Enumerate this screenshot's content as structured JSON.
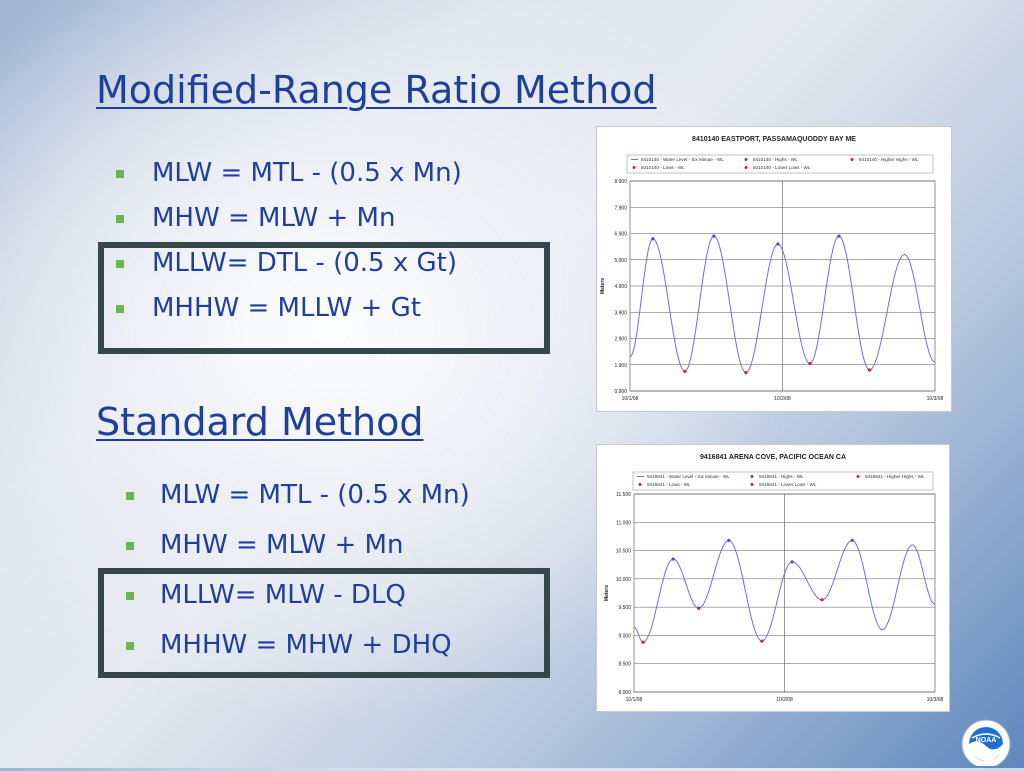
{
  "slide": {
    "title1": "Modified-Range Ratio Method",
    "title2": "Standard Method",
    "list1": [
      "MLW = MTL - (0.5 x Mn)",
      "MHW = MLW + Mn",
      "MLLW= DTL - (0.5 x Gt)",
      "MHHW = MLLW + Gt"
    ],
    "list2": [
      "MLW = MTL - (0.5 x Mn)",
      "MHW = MLW + Mn",
      "MLLW= MLW - DLQ",
      "MHHW = MHW + DHQ"
    ],
    "bullet_color": "#6bb74f",
    "text_color": "#1f3f9a",
    "box_color": "#34484c"
  },
  "logo": {
    "text": "NOAA",
    "icon": "noaa-seal-icon"
  },
  "chart_data": [
    {
      "type": "line",
      "title": "8410140  EASTPORT, PASSAMAQUODDY BAY ME",
      "ylabel": "Meters",
      "ylim": [
        0.9,
        8.9
      ],
      "yticks": [
        "8.900",
        "7.900",
        "6.900",
        "5.900",
        "4.900",
        "3.900",
        "2.900",
        "1.900",
        "0.900"
      ],
      "xticks": [
        "10/1/08",
        "10/2/08",
        "10/3/08"
      ],
      "legend": [
        "8410140 - Water Level - Six Minute - WL",
        "8410140 - Highs - WL",
        "8410140 - Higher Highs - WL",
        "8410140 - Lows - WL",
        "8410140 - Lower Lows - WL"
      ],
      "series": [
        {
          "name": "8410140 - Water Level - Six Minute - WL",
          "x": [
            0.0,
            0.15,
            0.36,
            0.55,
            0.76,
            0.97,
            1.18,
            1.37,
            1.57,
            1.8,
            2.0
          ],
          "y": [
            2.2,
            6.7,
            1.65,
            6.8,
            1.6,
            6.5,
            1.95,
            6.8,
            1.7,
            6.1,
            2.0
          ]
        },
        {
          "name": "8410140 - Highs - WL",
          "x": [
            0.15,
            0.55,
            0.97,
            1.37
          ],
          "y": [
            6.7,
            6.8,
            6.5,
            6.8
          ]
        },
        {
          "name": "8410140 - Lows - WL",
          "x": [
            0.36,
            0.76,
            1.18,
            1.57
          ],
          "y": [
            1.65,
            1.6,
            1.95,
            1.7
          ]
        }
      ],
      "colors": {
        "line": "#6f6fd9",
        "marker": "#cc2244"
      }
    },
    {
      "type": "line",
      "title": "9416841  ARENA COVE, PACIFIC OCEAN CA",
      "ylabel": "Meters",
      "ylim": [
        8.0,
        11.5
      ],
      "yticks": [
        "11.500",
        "11.000",
        "10.500",
        "10.000",
        "9.500",
        "9.000",
        "8.500",
        "8.000"
      ],
      "xticks": [
        "10/1/08",
        "10/2/08",
        "10/3/08"
      ],
      "legend": [
        "9416841 - Water Level - Six Minute - WL",
        "9416841 - Highs - WL",
        "9416841 - Higher Highs - WL",
        "9416841 - Lows - WL",
        "9416841 - Lower Lows - WL"
      ],
      "series": [
        {
          "name": "9416841 - Water Level - Six Minute - WL",
          "x": [
            0.0,
            0.06,
            0.26,
            0.43,
            0.63,
            0.85,
            1.05,
            1.25,
            1.45,
            1.65,
            1.85,
            2.0
          ],
          "y": [
            9.15,
            8.88,
            10.35,
            9.48,
            10.68,
            8.9,
            10.3,
            9.63,
            10.68,
            9.1,
            10.6,
            9.55
          ]
        },
        {
          "name": "9416841 - Highs - WL",
          "x": [
            0.26,
            0.63,
            1.05,
            1.45
          ],
          "y": [
            10.35,
            10.68,
            10.3,
            10.68
          ]
        },
        {
          "name": "9416841 - Lows - WL",
          "x": [
            0.06,
            0.43,
            0.85,
            1.25
          ],
          "y": [
            8.88,
            9.48,
            8.9,
            9.63
          ]
        }
      ],
      "colors": {
        "line": "#6f6fd9",
        "marker": "#cc2244"
      }
    }
  ]
}
